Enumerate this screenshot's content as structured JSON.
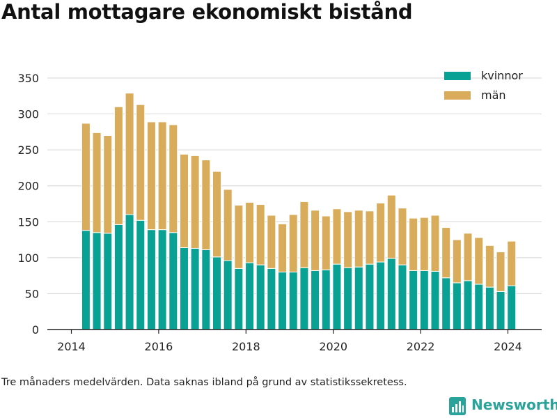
{
  "title": "Antal mottagare ekonomiskt bistånd",
  "footnote": "Tre månaders medelvärden. Data saknas ibland på grund av statistikssekretess.",
  "brand": {
    "name": "Newsworthy",
    "icon": "newsworthy-logo-icon"
  },
  "colors": {
    "kvinnor": "#0aa195",
    "man": "#d9ac5b",
    "grid": "#dddddd",
    "axis": "#222222"
  },
  "legend": {
    "placement": "top-right",
    "items": [
      {
        "key": "kvinnor",
        "label": "kvinnor"
      },
      {
        "key": "man",
        "label": "män"
      }
    ]
  },
  "chart_data": {
    "type": "bar",
    "stacked": true,
    "title": "Antal mottagare ekonomiskt bistånd",
    "xlabel": "",
    "ylabel": "",
    "ylim": [
      0,
      350
    ],
    "yticks": [
      0,
      50,
      100,
      150,
      200,
      250,
      300,
      350
    ],
    "xticks": [
      "2014",
      "2016",
      "2018",
      "2020",
      "2022",
      "2024"
    ],
    "grid": "horizontal",
    "x": [
      "2014-05",
      "2014-08",
      "2014-11",
      "2015-02",
      "2015-05",
      "2015-08",
      "2015-11",
      "2016-02",
      "2016-05",
      "2016-08",
      "2016-11",
      "2017-02",
      "2017-05",
      "2017-08",
      "2017-11",
      "2018-02",
      "2018-05",
      "2018-08",
      "2018-11",
      "2019-02",
      "2019-05",
      "2019-08",
      "2019-11",
      "2020-02",
      "2020-05",
      "2020-08",
      "2020-11",
      "2021-02",
      "2021-05",
      "2021-08",
      "2021-11",
      "2022-02",
      "2022-05",
      "2022-08",
      "2022-11",
      "2023-02",
      "2023-05",
      "2023-08",
      "2023-11",
      "2024-02"
    ],
    "series": [
      {
        "name": "kvinnor",
        "values": [
          138,
          135,
          134,
          146,
          160,
          152,
          139,
          139,
          135,
          114,
          113,
          111,
          101,
          96,
          85,
          93,
          90,
          85,
          80,
          80,
          86,
          82,
          83,
          91,
          86,
          87,
          91,
          94,
          99,
          90,
          82,
          82,
          81,
          72,
          65,
          68,
          63,
          59,
          53,
          61
        ]
      },
      {
        "name": "män",
        "values": [
          149,
          139,
          136,
          164,
          169,
          161,
          150,
          150,
          150,
          130,
          129,
          125,
          119,
          99,
          88,
          84,
          84,
          74,
          67,
          80,
          92,
          84,
          75,
          77,
          78,
          79,
          74,
          82,
          88,
          79,
          73,
          74,
          78,
          70,
          60,
          66,
          65,
          58,
          55,
          62
        ]
      }
    ]
  }
}
